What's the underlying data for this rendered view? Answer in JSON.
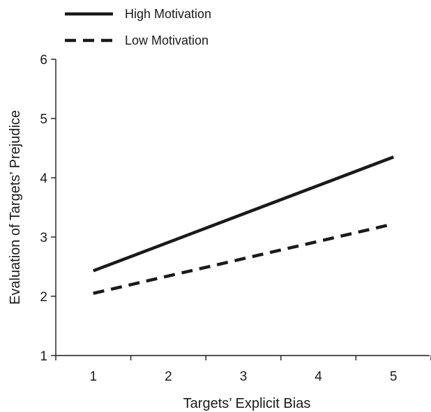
{
  "chart_data": {
    "type": "line",
    "x": [
      1,
      5
    ],
    "xticks": [
      1,
      2,
      3,
      4,
      5
    ],
    "yticks": [
      1,
      2,
      3,
      4,
      5,
      6
    ],
    "xlim": [
      0.5,
      5.5
    ],
    "ylim": [
      1,
      6
    ],
    "xlabel": "Targets’ Explicit Bias",
    "ylabel": "Evaluation of Targets’ Prejudice",
    "legend_position": "top-left",
    "grid": false,
    "series": [
      {
        "name": "High Motivation",
        "x": [
          1,
          5
        ],
        "values": [
          2.43,
          4.35
        ],
        "style": "solid",
        "color": "#1a1a1a"
      },
      {
        "name": "Low Motivation",
        "x": [
          1,
          5
        ],
        "values": [
          2.05,
          3.22
        ],
        "style": "dashed",
        "color": "#1a1a1a"
      }
    ]
  }
}
